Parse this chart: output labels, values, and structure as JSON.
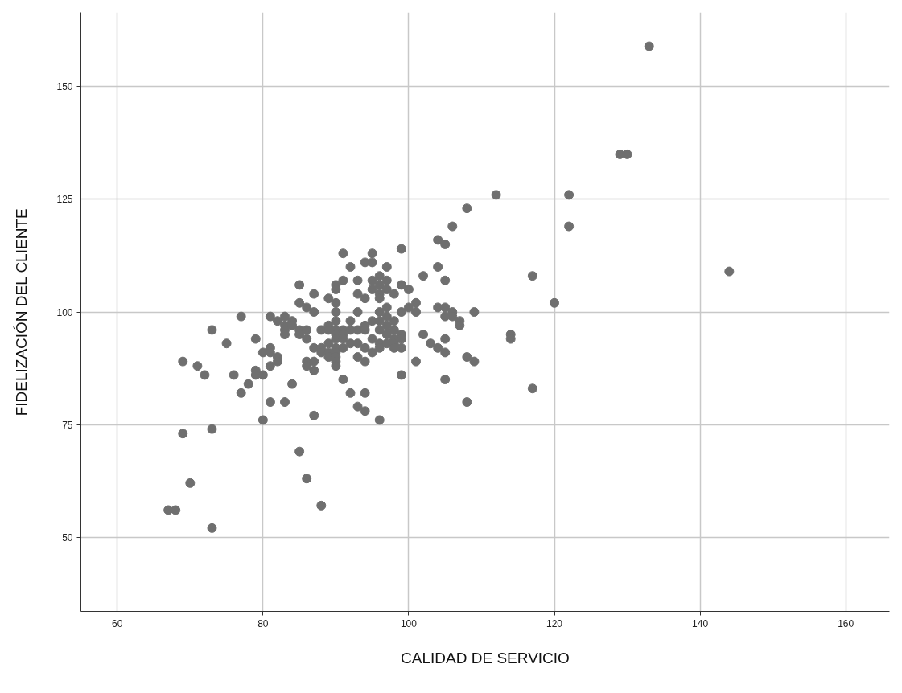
{
  "chart_data": {
    "type": "scatter",
    "xlabel": "CALIDAD DE SERVICIO",
    "ylabel": "FIDELIZACIÓN DEL CLIENTE",
    "x": [
      67,
      68,
      73,
      70,
      69,
      73,
      69,
      71,
      72,
      73,
      75,
      76,
      77,
      77,
      78,
      79,
      79,
      79,
      80,
      80,
      80,
      81,
      81,
      81,
      81,
      81,
      82,
      82,
      82,
      83,
      83,
      83,
      83,
      83,
      84,
      84,
      84,
      85,
      85,
      85,
      85,
      85,
      86,
      86,
      86,
      86,
      86,
      86,
      87,
      87,
      87,
      87,
      87,
      87,
      88,
      88,
      88,
      88,
      89,
      89,
      89,
      89,
      89,
      89,
      90,
      90,
      90,
      90,
      90,
      90,
      90,
      90,
      90,
      90,
      90,
      90,
      90,
      91,
      91,
      91,
      91,
      91,
      91,
      91,
      92,
      92,
      92,
      92,
      92,
      93,
      93,
      93,
      93,
      93,
      93,
      93,
      94,
      94,
      94,
      94,
      94,
      94,
      94,
      94,
      95,
      95,
      95,
      95,
      95,
      95,
      95,
      96,
      96,
      96,
      96,
      96,
      96,
      96,
      96,
      96,
      96,
      97,
      97,
      97,
      97,
      97,
      97,
      97,
      97,
      98,
      98,
      98,
      98,
      98,
      98,
      99,
      99,
      99,
      99,
      99,
      99,
      99,
      100,
      100,
      101,
      101,
      101,
      102,
      102,
      103,
      104,
      104,
      104,
      104,
      105,
      105,
      105,
      105,
      105,
      105,
      105,
      106,
      106,
      106,
      107,
      107,
      108,
      108,
      108,
      109,
      109,
      112,
      114,
      114,
      117,
      117,
      120,
      122,
      122,
      129,
      130,
      133,
      144
    ],
    "values": [
      56,
      56,
      52,
      62,
      73,
      74,
      89,
      88,
      86,
      96,
      93,
      86,
      82,
      99,
      84,
      94,
      87,
      86,
      91,
      86,
      76,
      99,
      92,
      91,
      88,
      80,
      98,
      90,
      89,
      99,
      97,
      96,
      95,
      80,
      98,
      97,
      84,
      106,
      102,
      96,
      95,
      69,
      101,
      96,
      94,
      89,
      88,
      63,
      104,
      100,
      92,
      89,
      87,
      77,
      96,
      92,
      91,
      57,
      103,
      97,
      96,
      93,
      91,
      90,
      106,
      105,
      102,
      100,
      98,
      96,
      95,
      94,
      92,
      91,
      90,
      89,
      88,
      113,
      107,
      96,
      95,
      94,
      92,
      85,
      110,
      98,
      96,
      93,
      82,
      107,
      104,
      100,
      96,
      93,
      90,
      79,
      111,
      103,
      97,
      96,
      92,
      89,
      82,
      78,
      113,
      111,
      107,
      105,
      98,
      94,
      91,
      108,
      106,
      104,
      103,
      100,
      98,
      96,
      93,
      92,
      76,
      110,
      107,
      105,
      101,
      99,
      97,
      95,
      93,
      104,
      98,
      96,
      94,
      93,
      92,
      114,
      106,
      100,
      95,
      94,
      92,
      86,
      105,
      101,
      102,
      100,
      89,
      108,
      95,
      93,
      116,
      110,
      101,
      92,
      115,
      107,
      101,
      99,
      94,
      91,
      85,
      119,
      100,
      99,
      98,
      97,
      123,
      90,
      80,
      100,
      89,
      126,
      95,
      94,
      108,
      83,
      102,
      126,
      119,
      135,
      135,
      159,
      109
    ],
    "color": "#6f6f6f",
    "marker": "circle",
    "grid": true,
    "xlim": [
      55,
      166
    ],
    "ylim": [
      33.5,
      166.5
    ],
    "xticks": [
      60,
      80,
      100,
      120,
      140,
      160
    ],
    "yticks": [
      50,
      75,
      100,
      125,
      150
    ]
  }
}
